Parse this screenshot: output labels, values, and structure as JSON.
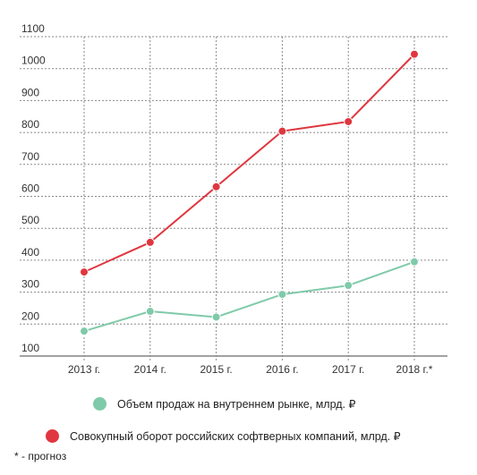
{
  "chart_data": {
    "type": "line",
    "title": "",
    "xlabel": "",
    "ylabel": "",
    "categories": [
      "2013 г.",
      "2014 г.",
      "2015 г.",
      "2016 г.",
      "2017 г.",
      "2018 г.*"
    ],
    "y_ticks": [
      "100",
      "200",
      "300",
      "400",
      "500",
      "600",
      "700",
      "800",
      "900",
      "1000",
      "1100"
    ],
    "ylim": [
      100,
      1100
    ],
    "grid": true,
    "legend_position": "bottom",
    "series": [
      {
        "name": "Объем продаж на внутреннем рынке, млрд. ₽",
        "color": "#7fcaa9",
        "values": [
          178,
          240,
          222,
          293,
          321,
          395
        ]
      },
      {
        "name": "Совокупный оборот российских софтверных компаний, млрд. ₽",
        "color": "#e0363f",
        "values": [
          363,
          456,
          630,
          804,
          834,
          1045
        ]
      }
    ]
  },
  "footnote": "* - прогноз"
}
